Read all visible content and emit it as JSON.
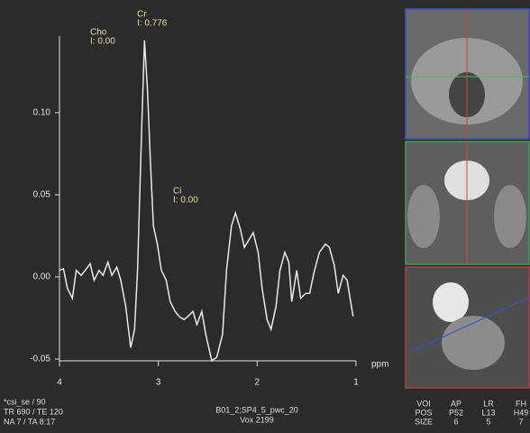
{
  "chart_data": {
    "type": "line",
    "x": [
      4.0,
      3.96,
      3.92,
      3.87,
      3.83,
      3.78,
      3.74,
      3.69,
      3.65,
      3.6,
      3.56,
      3.51,
      3.47,
      3.42,
      3.38,
      3.33,
      3.28,
      3.24,
      3.21,
      3.17,
      3.14,
      3.11,
      3.08,
      3.05,
      3.01,
      2.97,
      2.92,
      2.88,
      2.83,
      2.79,
      2.74,
      2.7,
      2.65,
      2.61,
      2.56,
      2.52,
      2.46,
      2.41,
      2.35,
      2.31,
      2.26,
      2.22,
      2.17,
      2.13,
      2.08,
      2.04,
      1.99,
      1.95,
      1.9,
      1.86,
      1.81,
      1.77,
      1.72,
      1.68,
      1.65,
      1.6,
      1.56,
      1.51,
      1.47,
      1.42,
      1.37,
      1.31,
      1.27,
      1.22,
      1.18,
      1.13,
      1.09,
      1.03
    ],
    "values": [
      0.004,
      0.005,
      -0.007,
      -0.013,
      0.004,
      0.001,
      0.004,
      0.008,
      -0.002,
      0.004,
      0.001,
      0.009,
      0.001,
      0.006,
      -0.002,
      -0.018,
      -0.043,
      -0.032,
      0.004,
      0.087,
      0.144,
      0.114,
      0.07,
      0.031,
      0.02,
      0.004,
      -0.002,
      -0.015,
      -0.021,
      -0.024,
      -0.026,
      -0.024,
      -0.021,
      -0.029,
      -0.021,
      -0.035,
      -0.051,
      -0.049,
      -0.035,
      0.004,
      0.031,
      0.039,
      0.029,
      0.018,
      0.023,
      0.027,
      0.015,
      -0.007,
      -0.026,
      -0.032,
      -0.018,
      0.004,
      0.015,
      0.009,
      -0.015,
      0.004,
      -0.013,
      -0.01,
      -0.01,
      0.004,
      0.015,
      0.02,
      0.018,
      0.007,
      -0.01,
      0.001,
      -0.002,
      -0.024
    ],
    "color": "#e8e8e8",
    "xlabel": "ppm",
    "xlim": [
      4,
      1
    ],
    "xticks": [
      4,
      3,
      2,
      1
    ],
    "ylim": [
      -0.05,
      0.145
    ],
    "yticks": [
      {
        "value": 0.1,
        "label": "0.10"
      },
      0.05,
      {
        "value": 0,
        "label": "0.00"
      },
      -0.05
    ],
    "grid": false,
    "annotations": [
      {
        "name": "Cho",
        "text": "I: 0.00"
      },
      {
        "name": "Cr",
        "text": "I: 0.776"
      },
      {
        "name": "Ci",
        "text": "I: 0.00"
      }
    ]
  },
  "info": [
    "*csi_se / 90",
    "TR 690 / TE 120",
    "NA 7 / TA 8:17"
  ],
  "protocol": [
    "B01_2;SP4_5_pwc_20",
    "Vox 2199"
  ],
  "voi": [
    [
      "VOI",
      "POS",
      "SIZE"
    ],
    [
      "AP",
      "P52",
      "6"
    ],
    [
      "LR",
      "L13",
      "5"
    ],
    [
      "FH",
      "H49",
      "7"
    ]
  ]
}
